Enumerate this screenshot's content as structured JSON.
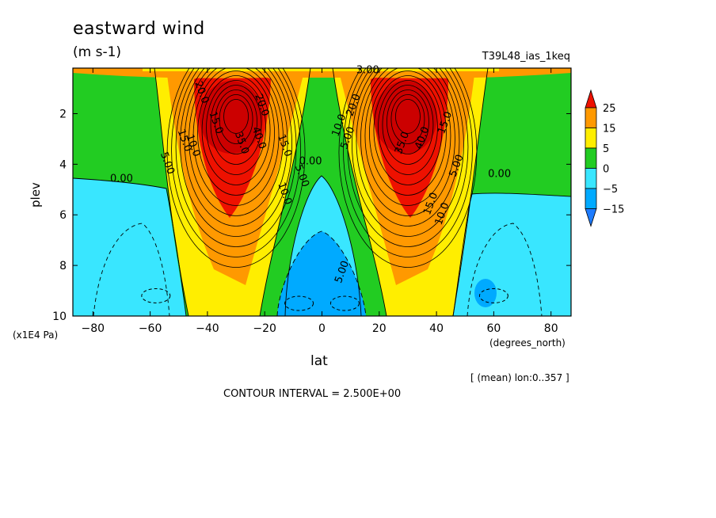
{
  "title": "eastward wind",
  "units": "(m s-1)",
  "run": "T39L48_ias_1keq",
  "contour_interval": "CONTOUR INTERVAL = 2.500E+00",
  "subtitle": "[ (mean) lon:0..357 ]",
  "colors": {
    "lt_neg15": "#1e7cff",
    "neg15_neg5": "#00aaff",
    "neg5_0": "#39e6ff",
    "0_5": "#22cc22",
    "5_15": "#ffee00",
    "15_25": "#ff9900",
    "gt_25": "#ee1100",
    "deep": "#cc0000"
  },
  "chart_data": {
    "type": "heatmap",
    "title": "eastward wind",
    "units": "(m s-1)",
    "xlabel": "lat",
    "ylabel": "plev",
    "x_unit": "(degrees_north)",
    "y_unit": "(x1E4 Pa)",
    "xlim": [
      -87,
      87
    ],
    "ylim": [
      10,
      0.2
    ],
    "x_ticks": [
      -80,
      -60,
      -40,
      -20,
      0,
      20,
      40,
      60,
      80
    ],
    "y_ticks": [
      2,
      4,
      6,
      8,
      10
    ],
    "colorbar_levels": [
      "25",
      "15",
      "5",
      "0",
      "-5",
      "-15"
    ],
    "contour_interval": 2.5,
    "jets": [
      {
        "lat": -30,
        "plev": 2.0,
        "max_u": 47.5
      },
      {
        "lat": 30,
        "plev": 2.0,
        "max_u": 47.5
      }
    ],
    "easterly_minima": [
      {
        "lat": -8,
        "plev": 9.5,
        "u": -12.5
      },
      {
        "lat": 8,
        "plev": 9.5,
        "u": -12.5
      },
      {
        "lat": -58,
        "plev": 9.2,
        "u": -10
      },
      {
        "lat": 60,
        "plev": 9.2,
        "u": -12.5
      }
    ],
    "contour_labels": [
      {
        "text": "0.00",
        "lat": -70,
        "plev": 4.7
      },
      {
        "text": "5.00",
        "lat": -55,
        "plev": 4.0
      },
      {
        "text": "15.0",
        "lat": -49,
        "plev": 3.1
      },
      {
        "text": "10.0",
        "lat": -46,
        "plev": 3.3
      },
      {
        "text": "20.0",
        "lat": -43,
        "plev": 1.2
      },
      {
        "text": "15.0",
        "lat": -38,
        "plev": 2.4
      },
      {
        "text": "35.0",
        "lat": -29,
        "plev": 3.2
      },
      {
        "text": "40.0",
        "lat": -23,
        "plev": 3.0
      },
      {
        "text": "15.0",
        "lat": -14,
        "plev": 3.3
      },
      {
        "text": "10.0",
        "lat": -14,
        "plev": 5.2
      },
      {
        "text": "5.00",
        "lat": -8,
        "plev": 4.5
      },
      {
        "text": "0.00",
        "lat": -4,
        "plev": 4.0
      },
      {
        "text": "20.0",
        "lat": -22,
        "plev": 1.7
      },
      {
        "text": "10.0",
        "lat": 7,
        "plev": 2.5
      },
      {
        "text": "5.00",
        "lat": 10,
        "plev": 3.0
      },
      {
        "text": "20.0",
        "lat": 12,
        "plev": 1.7
      },
      {
        "text": "35.0",
        "lat": 29,
        "plev": 3.2
      },
      {
        "text": "40.0",
        "lat": 36,
        "plev": 3.0
      },
      {
        "text": "15.0",
        "lat": 44,
        "plev": 2.4
      },
      {
        "text": "15.0",
        "lat": 39,
        "plev": 5.6
      },
      {
        "text": "10.0",
        "lat": 43,
        "plev": 6.0
      },
      {
        "text": "5.00",
        "lat": 48,
        "plev": 4.1
      },
      {
        "text": "0.00",
        "lat": 62,
        "plev": 4.5
      },
      {
        "text": "5.00",
        "lat": 8,
        "plev": 8.3
      },
      {
        "text": "3.00",
        "lat": 16,
        "plev": 0.4
      }
    ]
  }
}
